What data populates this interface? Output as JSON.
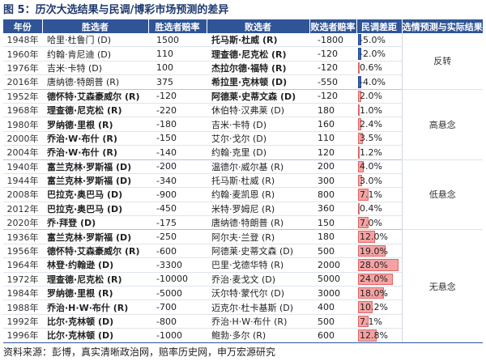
{
  "title": "图 5：历次大选结果与民调/博彩市场预测的差异",
  "headers": [
    "年份",
    "胜选者",
    "胜选者赔率",
    "败选者",
    "败选者赔率",
    "民调差距",
    "选情预测与实际结果"
  ],
  "groups": [
    {
      "result": "反转",
      "rows": [
        {
          "year": "1948年",
          "winner": "哈里·杜鲁门 (D)",
          "winner_bold": false,
          "winner_odds": "1500",
          "loser": "托马斯·杜威 (R)",
          "loser_bold": true,
          "loser_odds": "-1800",
          "gap": "-5.0%",
          "gap_value": -5.0
        },
        {
          "year": "1960年",
          "winner": "约翰·肯尼迪 (D)",
          "winner_bold": false,
          "winner_odds": "110",
          "loser": "理查德·尼克松 (R)",
          "loser_bold": true,
          "loser_odds": "-120",
          "gap": "-2.0%",
          "gap_value": -2.0
        },
        {
          "year": "1976年",
          "winner": "吉米·卡特 (D)",
          "winner_bold": false,
          "winner_odds": "100",
          "loser": "杰拉尔德·福特 (R)",
          "loser_bold": true,
          "loser_odds": "-120",
          "gap": "0.6%",
          "gap_value": 0.6
        },
        {
          "year": "2016年",
          "winner": "唐纳德·特朗普 (R)",
          "winner_bold": false,
          "winner_odds": "375",
          "loser": "希拉里·克林顿 (D)",
          "loser_bold": true,
          "loser_odds": "-550",
          "gap": "-4.0%",
          "gap_value": -4.0
        }
      ]
    },
    {
      "result": "高悬念",
      "rows": [
        {
          "year": "1952年",
          "winner": "德怀特·艾森豪威尔 (R)",
          "winner_bold": true,
          "winner_odds": "-120",
          "loser": "阿德莱·史蒂文森 (D)",
          "loser_bold": true,
          "loser_odds": "-120",
          "gap": "2.0%",
          "gap_value": 2.0
        },
        {
          "year": "1968年",
          "winner": "理查德·尼克松 (R)",
          "winner_bold": true,
          "winner_odds": "-220",
          "loser": "休伯特·汉弗莱 (D)",
          "loser_bold": false,
          "loser_odds": "180",
          "gap": "1.0%",
          "gap_value": 1.0
        },
        {
          "year": "1980年",
          "winner": "罗纳德·里根 (R)",
          "winner_bold": true,
          "winner_odds": "-180",
          "loser": "吉米·卡特 (D)",
          "loser_bold": false,
          "loser_odds": "160",
          "gap": "2.4%",
          "gap_value": 2.4
        },
        {
          "year": "2000年",
          "winner": "乔治·W·布什 (R)",
          "winner_bold": true,
          "winner_odds": "-150",
          "loser": "艾尔·戈尔 (D)",
          "loser_bold": false,
          "loser_odds": "110",
          "gap": "3.5%",
          "gap_value": 3.5
        },
        {
          "year": "2004年",
          "winner": "乔治·W·布什 (R)",
          "winner_bold": true,
          "winner_odds": "-140",
          "loser": "约翰·克里 (D)",
          "loser_bold": false,
          "loser_odds": "120",
          "gap": "1.2%",
          "gap_value": 1.2
        }
      ]
    },
    {
      "result": "低悬念",
      "rows": [
        {
          "year": "1940年",
          "winner": "富兰克林·罗斯福 (D)",
          "winner_bold": true,
          "winner_odds": "-200",
          "loser": "温德尔·威尔基 (R)",
          "loser_bold": false,
          "loser_odds": "200",
          "gap": "4.0%",
          "gap_value": 4.0
        },
        {
          "year": "1944年",
          "winner": "富兰克林·罗斯福 (D)",
          "winner_bold": true,
          "winner_odds": "-340",
          "loser": "托马斯·杜威 (R)",
          "loser_bold": false,
          "loser_odds": "300",
          "gap": "3.0%",
          "gap_value": 3.0
        },
        {
          "year": "2008年",
          "winner": "巴拉克·奥巴马 (D)",
          "winner_bold": true,
          "winner_odds": "-900",
          "loser": "约翰·麦凯恩 (R)",
          "loser_bold": false,
          "loser_odds": "800",
          "gap": "7.1%",
          "gap_value": 7.1
        },
        {
          "year": "2012年",
          "winner": "巴拉克·奥巴马 (D)",
          "winner_bold": true,
          "winner_odds": "-450",
          "loser": "米特·罗姆尼 (R)",
          "loser_bold": false,
          "loser_odds": "360",
          "gap": "0.4%",
          "gap_value": 0.4
        },
        {
          "year": "2020年",
          "winner": "乔·拜登 (D)",
          "winner_bold": true,
          "winner_odds": "-175",
          "loser": "唐纳德·特朗普 (R)",
          "loser_bold": false,
          "loser_odds": "150",
          "gap": "7.0%",
          "gap_value": 7.0
        }
      ]
    },
    {
      "result": "无悬念",
      "rows": [
        {
          "year": "1936年",
          "winner": "富兰克林·罗斯福 (D)",
          "winner_bold": true,
          "winner_odds": "-250",
          "loser": "阿尔夫·兰登 (R)",
          "loser_bold": false,
          "loser_odds": "180",
          "gap": "12.0%",
          "gap_value": 12.0
        },
        {
          "year": "1956年",
          "winner": "德怀特·艾森豪威尔 (R)",
          "winner_bold": true,
          "winner_odds": "-600",
          "loser": "阿德莱·史蒂文森 (D)",
          "loser_bold": false,
          "loser_odds": "500",
          "gap": "19.0%",
          "gap_value": 19.0
        },
        {
          "year": "1964年",
          "winner": "林登·约翰逊 (D)",
          "winner_bold": true,
          "winner_odds": "-3300",
          "loser": "巴里·戈德华特 (R)",
          "loser_bold": false,
          "loser_odds": "2000",
          "gap": "28.0%",
          "gap_value": 28.0
        },
        {
          "year": "1972年",
          "winner": "理查德·尼克松 (R)",
          "winner_bold": true,
          "winner_odds": "-10000",
          "loser": "乔治·麦戈文 (D)",
          "loser_bold": false,
          "loser_odds": "5000",
          "gap": "24.0%",
          "gap_value": 24.0
        },
        {
          "year": "1984年",
          "winner": "罗纳德·里根 (R)",
          "winner_bold": true,
          "winner_odds": "-5000",
          "loser": "沃尔特·蒙代尔 (D)",
          "loser_bold": false,
          "loser_odds": "3000",
          "gap": "18.0%",
          "gap_value": 18.0
        },
        {
          "year": "1988年",
          "winner": "乔治·H·W·布什 (R)",
          "winner_bold": true,
          "winner_odds": "-700",
          "loser": "迈克尔·杜卡基斯 (D)",
          "loser_bold": false,
          "loser_odds": "400",
          "gap": "10.2%",
          "gap_value": 10.2
        },
        {
          "year": "1992年",
          "winner": "比尔·克林顿 (D)",
          "winner_bold": true,
          "winner_odds": "-800",
          "loser": "乔治·H·W·布什 (R)",
          "loser_bold": false,
          "loser_odds": "500",
          "gap": "7.1%",
          "gap_value": 7.1
        },
        {
          "year": "1996年",
          "winner": "比尔·克林顿 (D)",
          "winner_bold": true,
          "winner_odds": "-1000",
          "loser": "鲍勃·多尔 (R)",
          "loser_bold": false,
          "loser_odds": "600",
          "gap": "12.8%",
          "gap_value": 12.8
        }
      ]
    }
  ],
  "bar_scale_max": 28.0,
  "colors": {
    "header_bg": "#2f5597",
    "bar_positive": "#f4a3a3",
    "bar_negative": "#3b62b5"
  },
  "footer": "资料来源：彭博，真实清晰政治网，赔率历史网，申万宏源研究"
}
